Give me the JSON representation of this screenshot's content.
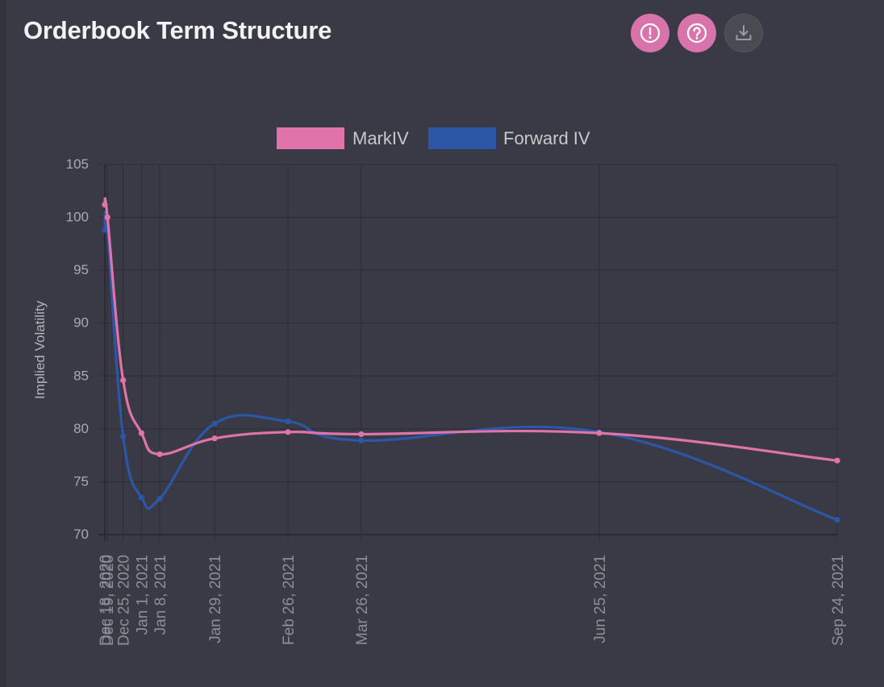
{
  "header": {
    "title": "Orderbook Term Structure",
    "buttons": [
      {
        "icon": "alert-circle-icon",
        "color": "#d873ab"
      },
      {
        "icon": "help-circle-icon",
        "color": "#d873ab"
      },
      {
        "icon": "download-icon",
        "color": "#4a4a52"
      }
    ]
  },
  "chart_data": {
    "type": "line",
    "title": "",
    "ylabel": "Implied Volatility",
    "xlabel": "",
    "ylim": [
      70,
      105
    ],
    "yticks": [
      70,
      75,
      80,
      85,
      90,
      95,
      100,
      105
    ],
    "grid": true,
    "legend": "top",
    "x": [
      "Dec 18, 2020",
      "Dec 19, 2020",
      "Dec 25, 2020",
      "Jan 1, 2021",
      "Jan 8, 2021",
      "Jan 29, 2021",
      "Feb 26, 2021",
      "Mar 26, 2021",
      "Jun 25, 2021",
      "Sep 24, 2021"
    ],
    "series": [
      {
        "name": "MarkIV",
        "color": "#e074aa",
        "values": [
          101.2,
          100.0,
          84.6,
          79.6,
          77.6,
          79.1,
          79.7,
          79.5,
          79.6,
          77.0
        ]
      },
      {
        "name": "Forward IV",
        "color": "#2c56a6",
        "values": [
          98.8,
          98.8,
          79.3,
          73.5,
          73.4,
          80.5,
          80.7,
          78.9,
          79.7,
          71.4
        ]
      }
    ]
  }
}
